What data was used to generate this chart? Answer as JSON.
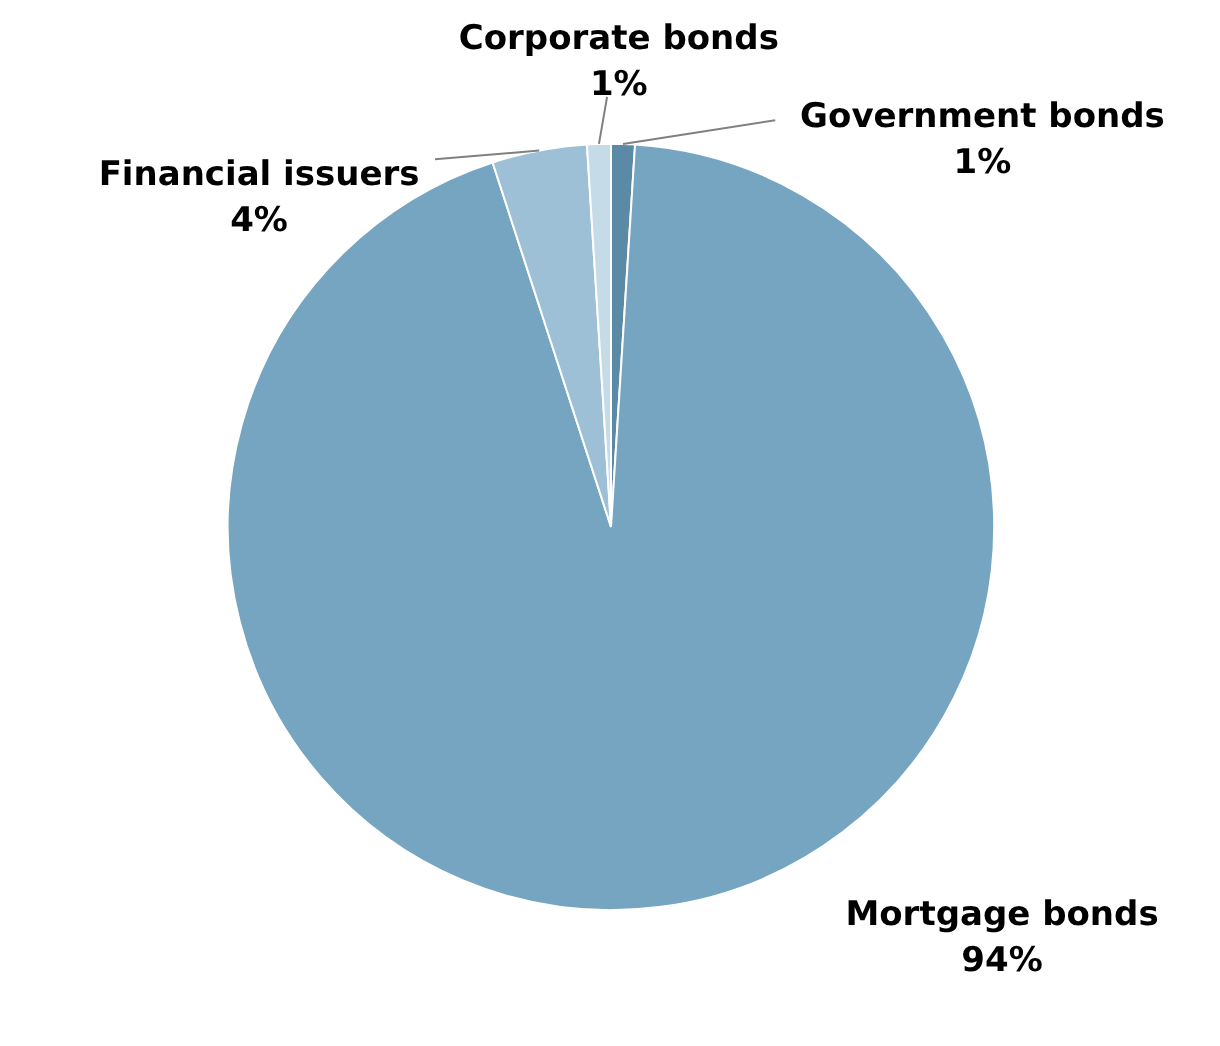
{
  "chart_data": {
    "type": "pie",
    "categories": [
      "Government bonds",
      "Mortgage bonds",
      "Financial issuers",
      "Corporate bonds"
    ],
    "values": [
      1,
      94,
      4,
      1
    ],
    "colors": [
      "#5a8aa5",
      "#75a5c0",
      "#9dc0d6",
      "#c5dbe8"
    ],
    "value_labels": [
      "1%",
      "94%",
      "4%",
      "1%"
    ]
  }
}
